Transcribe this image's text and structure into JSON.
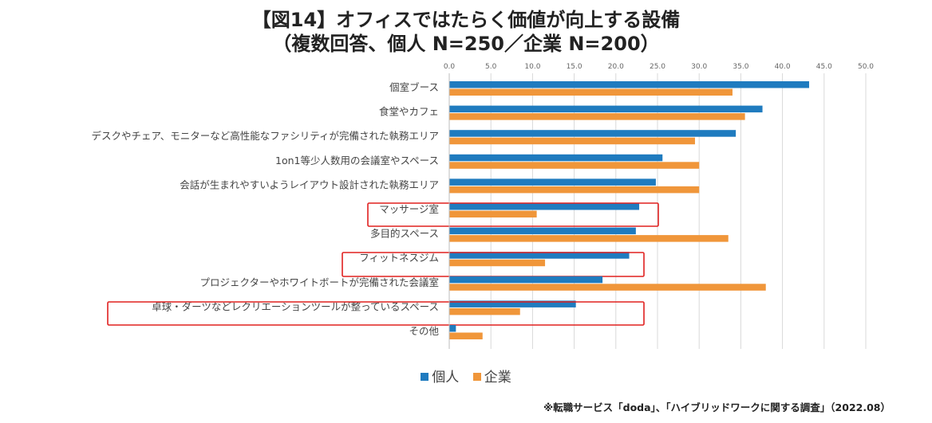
{
  "title": {
    "line1": "【図14】オフィスではたらく価値が向上する設備",
    "line2": "（複数回答、個人 N=250／企業 N=200）"
  },
  "source": "※転職サービス「doda」、「ハイブリッドワークに関する調査」（2022.08）",
  "colors": {
    "individual": "#1f7bbf",
    "company": "#f0963a",
    "highlight": "#e0201f",
    "grid": "#d9d9d9"
  },
  "chart_data": {
    "type": "bar",
    "orientation": "horizontal",
    "xlim": [
      0,
      50
    ],
    "xticks": [
      "0.0",
      "5.0",
      "10.0",
      "15.0",
      "20.0",
      "25.0",
      "30.0",
      "35.0",
      "40.0",
      "45.0",
      "50.0"
    ],
    "categories": [
      "個室ブース",
      "食堂やカフェ",
      "デスクやチェア、モニターなど高性能なファシリティが完備された執務エリア",
      "1on1等少人数用の会議室やスペース",
      "会話が生まれやすいようレイアウト設計された執務エリア",
      "マッサージ室",
      "多目的スペース",
      "フィットネスジム",
      "プロジェクターやホワイトボートが完備された会議室",
      "卓球・ダーツなどレクリエーションツールが整っているスペース",
      "その他"
    ],
    "highlighted": [
      "マッサージ室",
      "フィットネスジム",
      "卓球・ダーツなどレクリエーションツールが整っているスペース"
    ],
    "series": [
      {
        "name": "個人",
        "values": [
          43.2,
          37.6,
          34.4,
          25.6,
          24.8,
          22.8,
          22.4,
          21.6,
          18.4,
          15.2,
          0.8
        ]
      },
      {
        "name": "企業",
        "values": [
          34.0,
          35.5,
          29.5,
          30.0,
          30.0,
          10.5,
          33.5,
          11.5,
          38.0,
          8.5,
          4.0
        ]
      }
    ],
    "legend_position": "bottom",
    "grid": true
  }
}
